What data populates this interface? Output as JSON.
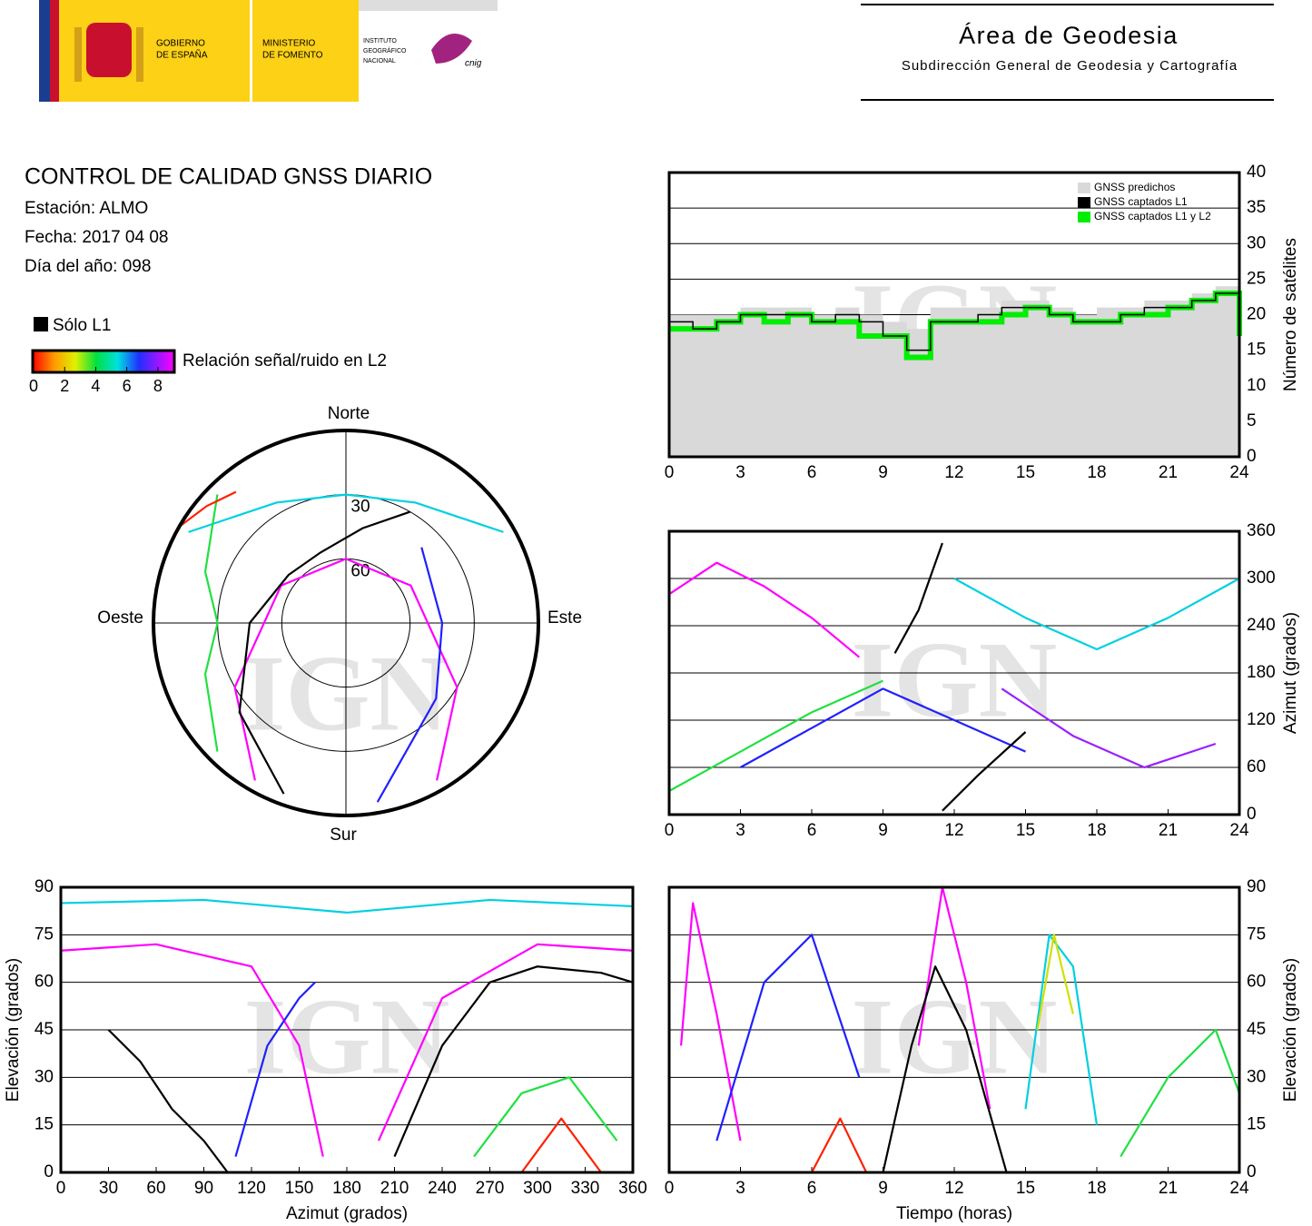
{
  "header": {
    "gobierno": [
      "GOBIERNO",
      "DE ESPAÑA"
    ],
    "ministerio": [
      "MINISTERIO",
      "DE FOMENTO"
    ],
    "instituto": [
      "INSTITUTO",
      "GEOGRÁFICO",
      "NACIONAL"
    ],
    "cnig": "cnig",
    "area": "Área de Geodesia",
    "subdireccion": "Subdirección General de Geodesia y Cartografía"
  },
  "report": {
    "title": "CONTROL DE CALIDAD GNSS DIARIO",
    "station": "Estación: ALMO",
    "date": "Fecha: 2017 04 08",
    "doy": "Día del año: 098",
    "legend_l1": "Sólo L1",
    "snr_label": "Relación señal/ruido en L2",
    "snr_lim": [
      0,
      9
    ],
    "snr_ticks": [
      0,
      2,
      4,
      6,
      8
    ]
  },
  "chart_data": [
    {
      "type": "line",
      "step": true,
      "watermark": "IGN",
      "ylabel": "Número de satélites",
      "legend": "upper right",
      "grid": true,
      "xlim": [
        0,
        24
      ],
      "xticks": [
        0,
        3,
        6,
        9,
        12,
        15,
        18,
        21,
        24
      ],
      "ylim": [
        0,
        40
      ],
      "yticks": [
        0,
        5,
        10,
        15,
        20,
        25,
        30,
        35,
        40
      ],
      "x": [
        0,
        1,
        2,
        3,
        4,
        5,
        6,
        7,
        8,
        9,
        10,
        11,
        12,
        13,
        14,
        15,
        16,
        17,
        18,
        19,
        20,
        21,
        22,
        23,
        24
      ],
      "series": [
        {
          "name": "GNSS predichos",
          "color": "#d9d9d9",
          "area": true,
          "values": [
            20,
            20,
            20,
            21,
            21,
            21,
            20,
            21,
            20,
            19,
            18,
            21,
            21,
            21,
            22,
            22,
            21,
            20,
            21,
            21,
            22,
            22,
            23,
            24,
            20
          ]
        },
        {
          "name": "GNSS captados L1",
          "color": "#000000",
          "values": [
            19,
            18,
            19,
            20,
            20,
            20,
            19,
            20,
            19,
            17,
            15,
            19,
            19,
            20,
            21,
            21,
            20,
            19,
            19,
            20,
            21,
            21,
            22,
            23,
            18
          ]
        },
        {
          "name": "GNSS captados L1 y L2",
          "color": "#00ee00",
          "values": [
            18,
            18,
            19,
            20,
            19,
            20,
            19,
            19,
            17,
            17,
            14,
            19,
            19,
            19,
            20,
            21,
            20,
            19,
            19,
            20,
            20,
            21,
            22,
            23,
            17
          ]
        }
      ]
    },
    {
      "type": "track",
      "watermark": "IGN",
      "ylabel": "Azimut (grados)",
      "grid": true,
      "xlim": [
        0,
        24
      ],
      "xticks": [
        0,
        3,
        6,
        9,
        12,
        15,
        18,
        21,
        24
      ],
      "ylim": [
        0,
        360
      ],
      "yticks": [
        0,
        60,
        120,
        180,
        240,
        300,
        360
      ],
      "series": [
        {
          "color": "#ff00ff",
          "x": [
            0,
            2,
            4,
            6,
            8
          ],
          "y": [
            280,
            320,
            290,
            250,
            200
          ]
        },
        {
          "color": "#2020ff",
          "x": [
            3,
            6,
            9,
            12,
            15
          ],
          "y": [
            60,
            110,
            160,
            120,
            80
          ]
        },
        {
          "color": "#00d0e0",
          "x": [
            12,
            15,
            18,
            21,
            24
          ],
          "y": [
            300,
            250,
            210,
            250,
            300
          ]
        },
        {
          "color": "#20e040",
          "x": [
            0,
            3,
            6,
            9
          ],
          "y": [
            30,
            80,
            130,
            170
          ]
        },
        {
          "color": "#9a20ff",
          "x": [
            14,
            17,
            20,
            23
          ],
          "y": [
            160,
            100,
            60,
            90
          ]
        },
        {
          "color": "#000000",
          "x": [
            9.5,
            10.5,
            11.5
          ],
          "y": [
            205,
            260,
            345
          ]
        },
        {
          "color": "#000000",
          "x": [
            11.5,
            13,
            15
          ],
          "y": [
            5,
            50,
            105
          ]
        }
      ]
    },
    {
      "type": "polar",
      "watermark": "IGN",
      "rlim": [
        90,
        0
      ],
      "rticks": [
        30,
        60
      ],
      "directions": {
        "north": "Norte",
        "south": "Sur",
        "east": "Este",
        "west": "Oeste"
      },
      "series": [
        {
          "color": "#ff00ff",
          "az": [
            150,
            120,
            60,
            0,
            300,
            240,
            210
          ],
          "el": [
            5,
            30,
            55,
            60,
            55,
            30,
            5
          ]
        },
        {
          "color": "#2020ff",
          "az": [
            170,
            130,
            90,
            45
          ],
          "el": [
            5,
            35,
            45,
            40
          ]
        },
        {
          "color": "#00d0e0",
          "az": [
            300,
            330,
            0,
            30,
            60
          ],
          "el": [
            5,
            25,
            30,
            25,
            5
          ]
        },
        {
          "color": "#20e040",
          "az": [
            225,
            250,
            270,
            290,
            315
          ],
          "el": [
            5,
            20,
            30,
            20,
            5
          ]
        },
        {
          "color": "#ff2000",
          "az": [
            300,
            310,
            320
          ],
          "el": [
            0,
            5,
            10
          ]
        },
        {
          "color": "#000000",
          "az": [
            200,
            230,
            270,
            310,
            340,
            10,
            30
          ],
          "el": [
            5,
            25,
            45,
            55,
            55,
            45,
            30
          ]
        }
      ]
    },
    {
      "type": "track",
      "watermark": "IGN",
      "xlabel": "Azimut (grados)",
      "ylabel": "Elevación (grados)",
      "grid": true,
      "xlim": [
        0,
        360
      ],
      "xticks": [
        0,
        30,
        60,
        90,
        120,
        150,
        180,
        210,
        240,
        270,
        300,
        330,
        360
      ],
      "ylim": [
        0,
        90
      ],
      "yticks": [
        0,
        15,
        30,
        45,
        60,
        75,
        90
      ],
      "series": [
        {
          "color": "#ff00ff",
          "x": [
            0,
            60,
            120,
            150,
            165
          ],
          "y": [
            70,
            72,
            65,
            40,
            5
          ]
        },
        {
          "color": "#ff00ff",
          "x": [
            200,
            240,
            300,
            360
          ],
          "y": [
            10,
            55,
            72,
            70
          ]
        },
        {
          "color": "#2020ff",
          "x": [
            110,
            130,
            150,
            160
          ],
          "y": [
            5,
            40,
            55,
            60
          ]
        },
        {
          "color": "#20e040",
          "x": [
            260,
            290,
            320,
            350
          ],
          "y": [
            5,
            25,
            30,
            10
          ]
        },
        {
          "color": "#ff2000",
          "x": [
            290,
            315,
            340
          ],
          "y": [
            0,
            17,
            0
          ]
        },
        {
          "color": "#00d0e0",
          "x": [
            0,
            90,
            180,
            270,
            360
          ],
          "y": [
            85,
            86,
            82,
            86,
            84
          ]
        },
        {
          "color": "#000000",
          "x": [
            30,
            50,
            70,
            90,
            105
          ],
          "y": [
            45,
            35,
            20,
            10,
            0
          ]
        },
        {
          "color": "#000000",
          "x": [
            210,
            240,
            270,
            300,
            340,
            360
          ],
          "y": [
            5,
            40,
            60,
            65,
            63,
            60
          ]
        }
      ]
    },
    {
      "type": "track",
      "watermark": "IGN",
      "xlabel": "Tiempo (horas)",
      "ylabel": "Elevación (grados)",
      "grid": true,
      "xlim": [
        0,
        24
      ],
      "xticks": [
        0,
        3,
        6,
        9,
        12,
        15,
        18,
        21,
        24
      ],
      "ylim": [
        0,
        90
      ],
      "yticks": [
        0,
        15,
        30,
        45,
        60,
        75,
        90
      ],
      "series": [
        {
          "color": "#ff00ff",
          "x": [
            0.5,
            1,
            2,
            3
          ],
          "y": [
            40,
            85,
            50,
            10
          ]
        },
        {
          "color": "#ff00ff",
          "x": [
            10.5,
            11.5,
            12.5,
            13.5
          ],
          "y": [
            40,
            90,
            60,
            20
          ]
        },
        {
          "color": "#2020ff",
          "x": [
            2,
            4,
            6,
            8
          ],
          "y": [
            10,
            60,
            75,
            30
          ]
        },
        {
          "color": "#00d0e0",
          "x": [
            15,
            16,
            17,
            18
          ],
          "y": [
            20,
            75,
            65,
            15
          ]
        },
        {
          "color": "#20e040",
          "x": [
            19,
            21,
            23,
            24
          ],
          "y": [
            5,
            30,
            45,
            25
          ]
        },
        {
          "color": "#d0e000",
          "x": [
            15.5,
            16.2,
            17
          ],
          "y": [
            45,
            75,
            50
          ]
        },
        {
          "color": "#ff2000",
          "x": [
            6,
            7.2,
            8.3
          ],
          "y": [
            0,
            17,
            0
          ]
        },
        {
          "color": "#000000",
          "x": [
            9,
            10.2,
            11.2,
            12.5,
            14.2
          ],
          "y": [
            0,
            40,
            65,
            45,
            0
          ]
        }
      ]
    }
  ]
}
